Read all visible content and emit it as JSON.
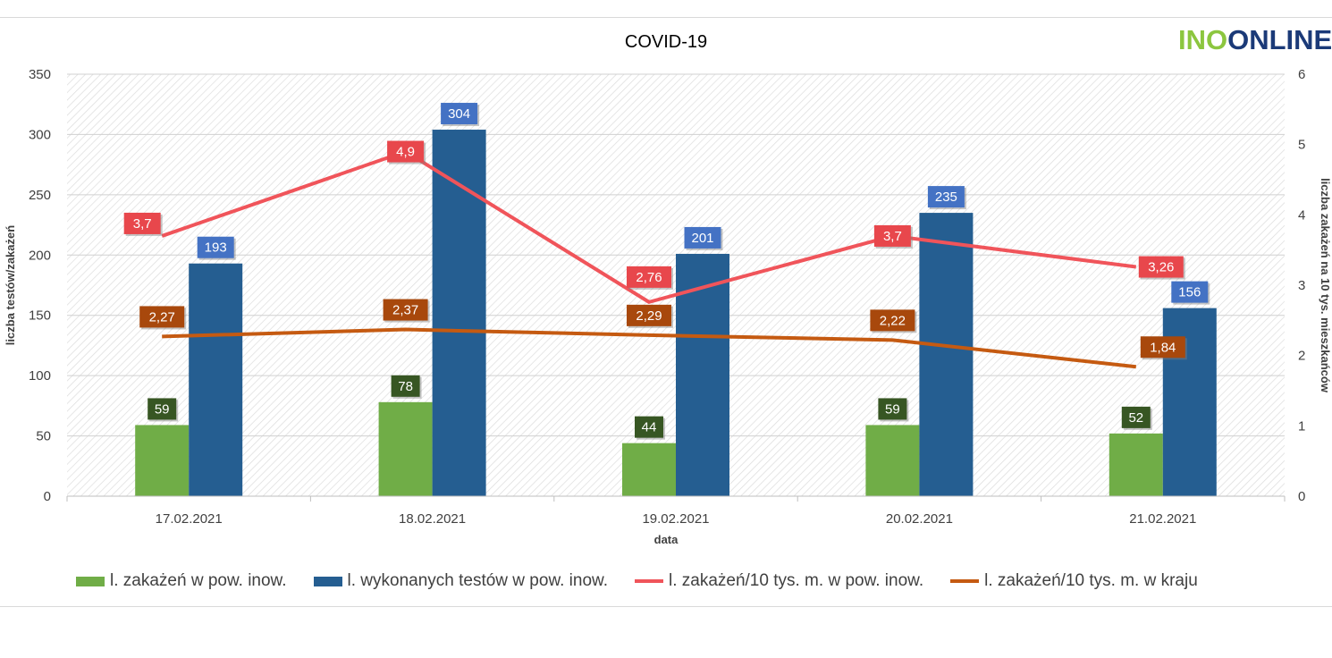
{
  "logo": {
    "part1": "INO",
    "part2": "ONLINE"
  },
  "colors": {
    "bar_infections": "#70ad47",
    "bar_tests": "#255e91",
    "line_local": "#f0545a",
    "line_country": "#c55a11",
    "label_infections_bg": "#375623",
    "label_tests_bg": "#4472c4",
    "label_local_bg": "#e8474c",
    "label_country_bg": "#a8480c"
  },
  "chart_data": {
    "type": "bar",
    "title": "COVID-19",
    "xlabel": "data",
    "ylabel": "liczba testów/zakażeń",
    "ylabel2": "liczba zakażeń na 10 tys. mieszkańców",
    "ylim": [
      0,
      350
    ],
    "ylim2": [
      0,
      6
    ],
    "yticks": [
      "0",
      "50",
      "100",
      "150",
      "200",
      "250",
      "300",
      "350"
    ],
    "yticks2": [
      "0",
      "1",
      "2",
      "3",
      "4",
      "5",
      "6"
    ],
    "categories": [
      "17.02.2021",
      "18.02.2021",
      "19.02.2021",
      "20.02.2021",
      "21.02.2021"
    ],
    "series": [
      {
        "name": "l. zakażeń w pow. inow.",
        "kind": "bar",
        "axis": "left",
        "values": [
          59,
          78,
          44,
          59,
          52
        ],
        "labels": [
          "59",
          "78",
          "44",
          "59",
          "52"
        ]
      },
      {
        "name": "l. wykonanych testów w pow. inow.",
        "kind": "bar",
        "axis": "left",
        "values": [
          193,
          304,
          201,
          235,
          156
        ],
        "labels": [
          "193",
          "304",
          "201",
          "235",
          "156"
        ]
      },
      {
        "name": "l. zakażeń/10 tys. m. w pow. inow.",
        "kind": "line",
        "axis": "right",
        "values": [
          3.7,
          4.9,
          2.76,
          3.7,
          3.26
        ],
        "labels": [
          "3,7",
          "4,9",
          "2,76",
          "3,7",
          "3,26"
        ]
      },
      {
        "name": "l. zakażeń/10 tys. m. w kraju",
        "kind": "line",
        "axis": "right",
        "values": [
          2.27,
          2.37,
          2.29,
          2.22,
          1.84
        ],
        "labels": [
          "2,27",
          "2,37",
          "2,29",
          "2,22",
          "1,84"
        ]
      }
    ],
    "legend": "bottom",
    "grid": true
  }
}
